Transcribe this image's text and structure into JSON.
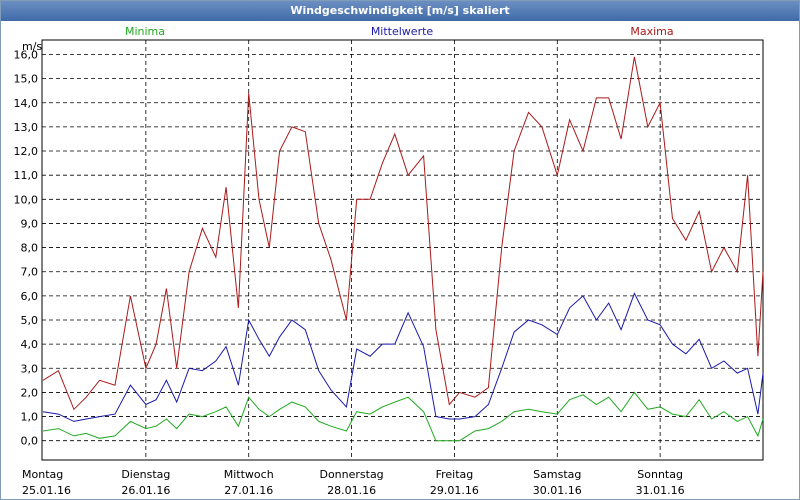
{
  "window": {
    "title": "Windgeschwindigkeit [m/s] skaliert"
  },
  "legend": [
    {
      "label": "Minima",
      "color": "#22aa22"
    },
    {
      "label": "Mittelwerte",
      "color": "#1a1aaa"
    },
    {
      "label": "Maxima",
      "color": "#aa1a1a"
    }
  ],
  "chart_data": {
    "type": "line",
    "title": "Windgeschwindigkeit [m/s] skaliert",
    "ylabel": "m/s",
    "xlabel": "",
    "ylim": [
      -0.8,
      16.6
    ],
    "xlim": [
      0,
      7
    ],
    "yticks": [
      "0,0",
      "1,0",
      "2,0",
      "3,0",
      "4,0",
      "5,0",
      "6,0",
      "7,0",
      "8,0",
      "9,0",
      "10,0",
      "11,0",
      "12,0",
      "13,0",
      "14,0",
      "15,0",
      "16,0"
    ],
    "xticks": [
      {
        "day": "Montag",
        "date": "25.01.16"
      },
      {
        "day": "Dienstag",
        "date": "26.01.16"
      },
      {
        "day": "Mittwoch",
        "date": "27.01.16"
      },
      {
        "day": "Donnerstag",
        "date": "28.01.16"
      },
      {
        "day": "Freitag",
        "date": "29.01.16"
      },
      {
        "day": "Samstag",
        "date": "30.01.16"
      },
      {
        "day": "Sonntag",
        "date": "31.01.16"
      }
    ],
    "grid": true,
    "series": [
      {
        "name": "Maxima",
        "color": "#aa1a1a",
        "x": [
          0.0,
          0.15,
          0.3,
          0.42,
          0.55,
          0.7,
          0.85,
          1.0,
          1.1,
          1.2,
          1.3,
          1.42,
          1.55,
          1.68,
          1.78,
          1.9,
          2.0,
          2.1,
          2.2,
          2.3,
          2.42,
          2.55,
          2.68,
          2.8,
          2.95,
          3.05,
          3.18,
          3.3,
          3.42,
          3.55,
          3.7,
          3.82,
          3.95,
          4.05,
          4.2,
          4.33,
          4.46,
          4.58,
          4.72,
          4.85,
          5.0,
          5.12,
          5.25,
          5.38,
          5.5,
          5.62,
          5.75,
          5.88,
          6.0,
          6.12,
          6.25,
          6.38,
          6.5,
          6.62,
          6.75,
          6.85,
          6.95,
          7.0
        ],
        "values": [
          2.5,
          2.9,
          1.3,
          1.8,
          2.5,
          2.3,
          6.0,
          3.0,
          4.0,
          6.3,
          3.0,
          7.0,
          8.8,
          7.6,
          10.5,
          5.5,
          14.4,
          10.0,
          8.0,
          12.0,
          13.0,
          12.8,
          9.0,
          7.5,
          5.0,
          10.0,
          10.0,
          11.5,
          12.7,
          11.0,
          11.8,
          4.6,
          1.5,
          2.0,
          1.8,
          2.2,
          8.0,
          12.0,
          13.6,
          13.0,
          11.0,
          13.3,
          12.0,
          14.2,
          14.2,
          12.5,
          15.9,
          13.0,
          14.0,
          9.2,
          8.3,
          9.5,
          7.0,
          8.0,
          7.0,
          11.0,
          3.5,
          7.0
        ]
      },
      {
        "name": "Mittelwerte",
        "color": "#1a1aaa",
        "x": [
          0.0,
          0.15,
          0.3,
          0.42,
          0.55,
          0.7,
          0.85,
          1.0,
          1.1,
          1.2,
          1.3,
          1.42,
          1.55,
          1.68,
          1.78,
          1.9,
          2.0,
          2.1,
          2.2,
          2.3,
          2.42,
          2.55,
          2.68,
          2.8,
          2.95,
          3.05,
          3.18,
          3.3,
          3.42,
          3.55,
          3.7,
          3.82,
          3.95,
          4.05,
          4.2,
          4.33,
          4.46,
          4.58,
          4.72,
          4.85,
          5.0,
          5.12,
          5.25,
          5.38,
          5.5,
          5.62,
          5.75,
          5.88,
          6.0,
          6.12,
          6.25,
          6.38,
          6.5,
          6.62,
          6.75,
          6.85,
          6.95,
          7.0
        ],
        "values": [
          1.2,
          1.1,
          0.8,
          0.9,
          1.0,
          1.1,
          2.3,
          1.5,
          1.7,
          2.5,
          1.6,
          3.0,
          2.9,
          3.3,
          3.9,
          2.3,
          5.0,
          4.2,
          3.5,
          4.3,
          5.0,
          4.6,
          2.9,
          2.1,
          1.4,
          3.8,
          3.5,
          4.0,
          4.0,
          5.3,
          3.9,
          1.0,
          0.9,
          0.9,
          1.0,
          1.5,
          3.0,
          4.5,
          5.0,
          4.8,
          4.4,
          5.5,
          6.0,
          5.0,
          5.7,
          4.6,
          6.1,
          5.0,
          4.8,
          4.0,
          3.6,
          4.2,
          3.0,
          3.3,
          2.8,
          3.0,
          1.1,
          2.8
        ]
      },
      {
        "name": "Minima",
        "color": "#22aa22",
        "x": [
          0.0,
          0.15,
          0.3,
          0.42,
          0.55,
          0.7,
          0.85,
          1.0,
          1.1,
          1.2,
          1.3,
          1.42,
          1.55,
          1.68,
          1.78,
          1.9,
          2.0,
          2.1,
          2.2,
          2.3,
          2.42,
          2.55,
          2.68,
          2.8,
          2.95,
          3.05,
          3.18,
          3.3,
          3.42,
          3.55,
          3.7,
          3.82,
          3.95,
          4.05,
          4.2,
          4.33,
          4.46,
          4.58,
          4.72,
          4.85,
          5.0,
          5.12,
          5.25,
          5.38,
          5.5,
          5.62,
          5.75,
          5.88,
          6.0,
          6.12,
          6.25,
          6.38,
          6.5,
          6.62,
          6.75,
          6.85,
          6.95,
          7.0
        ],
        "values": [
          0.4,
          0.5,
          0.2,
          0.3,
          0.1,
          0.2,
          0.8,
          0.5,
          0.6,
          0.9,
          0.5,
          1.1,
          1.0,
          1.2,
          1.4,
          0.6,
          1.8,
          1.3,
          1.0,
          1.3,
          1.6,
          1.4,
          0.8,
          0.6,
          0.4,
          1.2,
          1.1,
          1.4,
          1.6,
          1.8,
          1.2,
          0.0,
          0.0,
          0.0,
          0.4,
          0.5,
          0.8,
          1.2,
          1.3,
          1.2,
          1.1,
          1.7,
          1.9,
          1.5,
          1.8,
          1.2,
          2.0,
          1.3,
          1.4,
          1.1,
          1.0,
          1.7,
          0.9,
          1.2,
          0.8,
          1.0,
          0.2,
          0.9
        ]
      }
    ]
  }
}
